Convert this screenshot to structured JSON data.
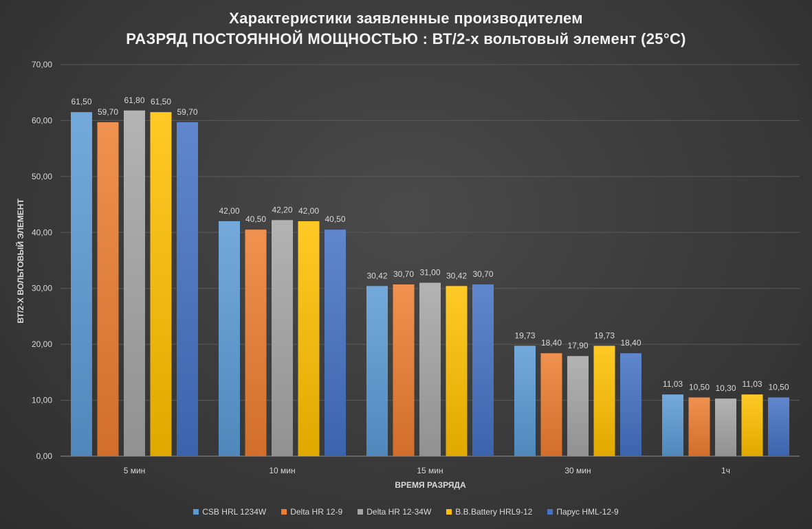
{
  "chart_data": {
    "type": "bar",
    "title": "Характеристики заявленные производителем",
    "subtitle": "РАЗРЯД ПОСТОЯННОЙ МОЩНОСТЬЮ : ВТ/2-х вольтовый элемент (25°С)",
    "xlabel": "ВРЕМЯ РАЗРЯДА",
    "ylabel": "ВТ/2-Х ВОЛЬТОВЫЙ ЭЛЕМЕНТ",
    "ylim": [
      0,
      70
    ],
    "yticks": [
      0,
      10,
      20,
      30,
      40,
      50,
      60,
      70
    ],
    "ytick_labels": [
      "0,00",
      "10,00",
      "20,00",
      "30,00",
      "40,00",
      "50,00",
      "60,00",
      "70,00"
    ],
    "grid": true,
    "legend_position": "bottom",
    "categories": [
      "5 мин",
      "10 мин",
      "15 мин",
      "30 мин",
      "1ч"
    ],
    "series": [
      {
        "name": "CSB HRL 1234W",
        "color": "#5b9bd5",
        "values": [
          61.5,
          42.0,
          30.42,
          19.73,
          11.03
        ],
        "labels": [
          "61,50",
          "42,00",
          "30,42",
          "19,73",
          "11,03"
        ]
      },
      {
        "name": "Delta HR 12-9",
        "color": "#ed7d31",
        "values": [
          59.7,
          40.5,
          30.7,
          18.4,
          10.5
        ],
        "labels": [
          "59,70",
          "40,50",
          "30,70",
          "18,40",
          "10,50"
        ]
      },
      {
        "name": "Delta HR 12-34W",
        "color": "#a5a5a5",
        "values": [
          61.8,
          42.2,
          31.0,
          17.9,
          10.3
        ],
        "labels": [
          "61,80",
          "42,20",
          "31,00",
          "17,90",
          "10,30"
        ]
      },
      {
        "name": "B.B.Battery HRL9-12",
        "color": "#ffc000",
        "values": [
          61.5,
          42.0,
          30.42,
          19.73,
          11.03
        ],
        "labels": [
          "61,50",
          "42,00",
          "30,42",
          "19,73",
          "11,03"
        ]
      },
      {
        "name": "Парус HML-12-9",
        "color": "#4472c4",
        "values": [
          59.7,
          40.5,
          30.7,
          18.4,
          10.5
        ],
        "labels": [
          "59,70",
          "40,50",
          "30,70",
          "18,40",
          "10,50"
        ]
      }
    ]
  }
}
